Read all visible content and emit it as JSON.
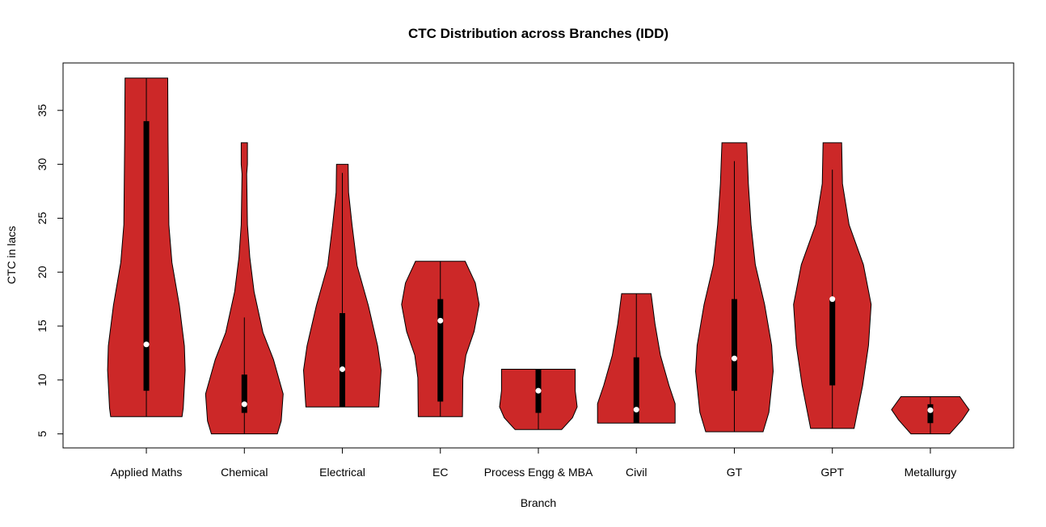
{
  "chart_data": {
    "type": "violin",
    "title": "CTC Distribution across Branches (IDD)",
    "xlabel": "Branch",
    "ylabel": "CTC in lacs",
    "ylim": [
      3.7,
      39.4
    ],
    "yticks": [
      "5",
      "10",
      "15",
      "20",
      "25",
      "30",
      "35"
    ],
    "grid": false,
    "fill_color": "#CC2828",
    "categories": [
      "Applied Maths",
      "Chemical",
      "Electrical",
      "EC",
      "Process Engg & MBA",
      "Civil",
      "GT",
      "GPT",
      "Metallurgy"
    ],
    "series": [
      {
        "min": 6.6,
        "max": 38.0,
        "q1": 9.0,
        "median": 13.3,
        "q3": 34.0,
        "whisker_low": 6.6,
        "whisker_high": 38.0,
        "density": [
          [
            6.6,
            0.92
          ],
          [
            7.4,
            0.95
          ],
          [
            10.9,
            1.0
          ],
          [
            13.15,
            0.98
          ],
          [
            16.9,
            0.85
          ],
          [
            20.9,
            0.66
          ],
          [
            24.4,
            0.58
          ],
          [
            32.1,
            0.56
          ],
          [
            38.0,
            0.55
          ]
        ]
      },
      {
        "min": 5.0,
        "max": 32.0,
        "q1": 6.95,
        "median": 7.75,
        "q3": 10.5,
        "whisker_low": 5.0,
        "whisker_high": 15.8,
        "density": [
          [
            5.0,
            0.85
          ],
          [
            6.2,
            0.95
          ],
          [
            8.7,
            1.0
          ],
          [
            11.9,
            0.75
          ],
          [
            14.4,
            0.48
          ],
          [
            18.2,
            0.25
          ],
          [
            21.4,
            0.14
          ],
          [
            24.4,
            0.08
          ],
          [
            29.1,
            0.06
          ],
          [
            30.0,
            0.08
          ],
          [
            32.0,
            0.08
          ]
        ]
      },
      {
        "min": 7.5,
        "max": 30.0,
        "q1": 7.5,
        "median": 11.0,
        "q3": 16.2,
        "whisker_low": 7.5,
        "whisker_high": 29.2,
        "density": [
          [
            7.5,
            0.94
          ],
          [
            10.9,
            1.0
          ],
          [
            13.15,
            0.91
          ],
          [
            16.9,
            0.67
          ],
          [
            20.6,
            0.38
          ],
          [
            24.4,
            0.25
          ],
          [
            27.4,
            0.16
          ],
          [
            30.0,
            0.15
          ]
        ]
      },
      {
        "min": 6.6,
        "max": 21.0,
        "q1": 8.0,
        "median": 15.5,
        "q3": 17.5,
        "whisker_low": 6.6,
        "whisker_high": 21.0,
        "density": [
          [
            6.6,
            0.57
          ],
          [
            10.2,
            0.58
          ],
          [
            12.3,
            0.66
          ],
          [
            14.5,
            0.87
          ],
          [
            17.0,
            1.0
          ],
          [
            19.0,
            0.9
          ],
          [
            21.0,
            0.64
          ]
        ]
      },
      {
        "min": 5.4,
        "max": 11.0,
        "q1": 6.95,
        "median": 9.0,
        "q3": 11.0,
        "whisker_low": 5.4,
        "whisker_high": 11.0,
        "density": [
          [
            5.4,
            0.6
          ],
          [
            6.5,
            0.88
          ],
          [
            7.5,
            1.0
          ],
          [
            9.0,
            0.95
          ],
          [
            11.0,
            0.95
          ]
        ]
      },
      {
        "min": 6.0,
        "max": 18.0,
        "q1": 6.0,
        "median": 7.25,
        "q3": 12.1,
        "whisker_low": 6.0,
        "whisker_high": 18.0,
        "density": [
          [
            6.0,
            1.0
          ],
          [
            7.8,
            1.0
          ],
          [
            9.5,
            0.84
          ],
          [
            12.3,
            0.62
          ],
          [
            15.2,
            0.48
          ],
          [
            18.0,
            0.38
          ]
        ]
      },
      {
        "min": 5.2,
        "max": 32.0,
        "q1": 9.0,
        "median": 12.0,
        "q3": 17.5,
        "whisker_low": 5.2,
        "whisker_high": 30.3,
        "density": [
          [
            5.2,
            0.74
          ],
          [
            7.0,
            0.89
          ],
          [
            10.8,
            1.0
          ],
          [
            13.2,
            0.96
          ],
          [
            17.0,
            0.78
          ],
          [
            20.7,
            0.54
          ],
          [
            24.4,
            0.43
          ],
          [
            28.2,
            0.36
          ],
          [
            32.0,
            0.32
          ]
        ]
      },
      {
        "min": 5.5,
        "max": 32.0,
        "q1": 9.5,
        "median": 17.5,
        "q3": 17.5,
        "whisker_low": 5.5,
        "whisker_high": 29.5,
        "density": [
          [
            5.5,
            0.56
          ],
          [
            9.5,
            0.78
          ],
          [
            13.2,
            0.93
          ],
          [
            17.0,
            1.0
          ],
          [
            20.7,
            0.8
          ],
          [
            24.4,
            0.43
          ],
          [
            28.2,
            0.26
          ],
          [
            32.0,
            0.24
          ]
        ]
      },
      {
        "min": 5.0,
        "max": 8.45,
        "q1": 6.0,
        "median": 7.2,
        "q3": 7.75,
        "whisker_low": 5.0,
        "whisker_high": 8.45,
        "density": [
          [
            5.0,
            0.5
          ],
          [
            6.3,
            0.82
          ],
          [
            7.25,
            1.0
          ],
          [
            8.45,
            0.76
          ]
        ]
      }
    ]
  }
}
